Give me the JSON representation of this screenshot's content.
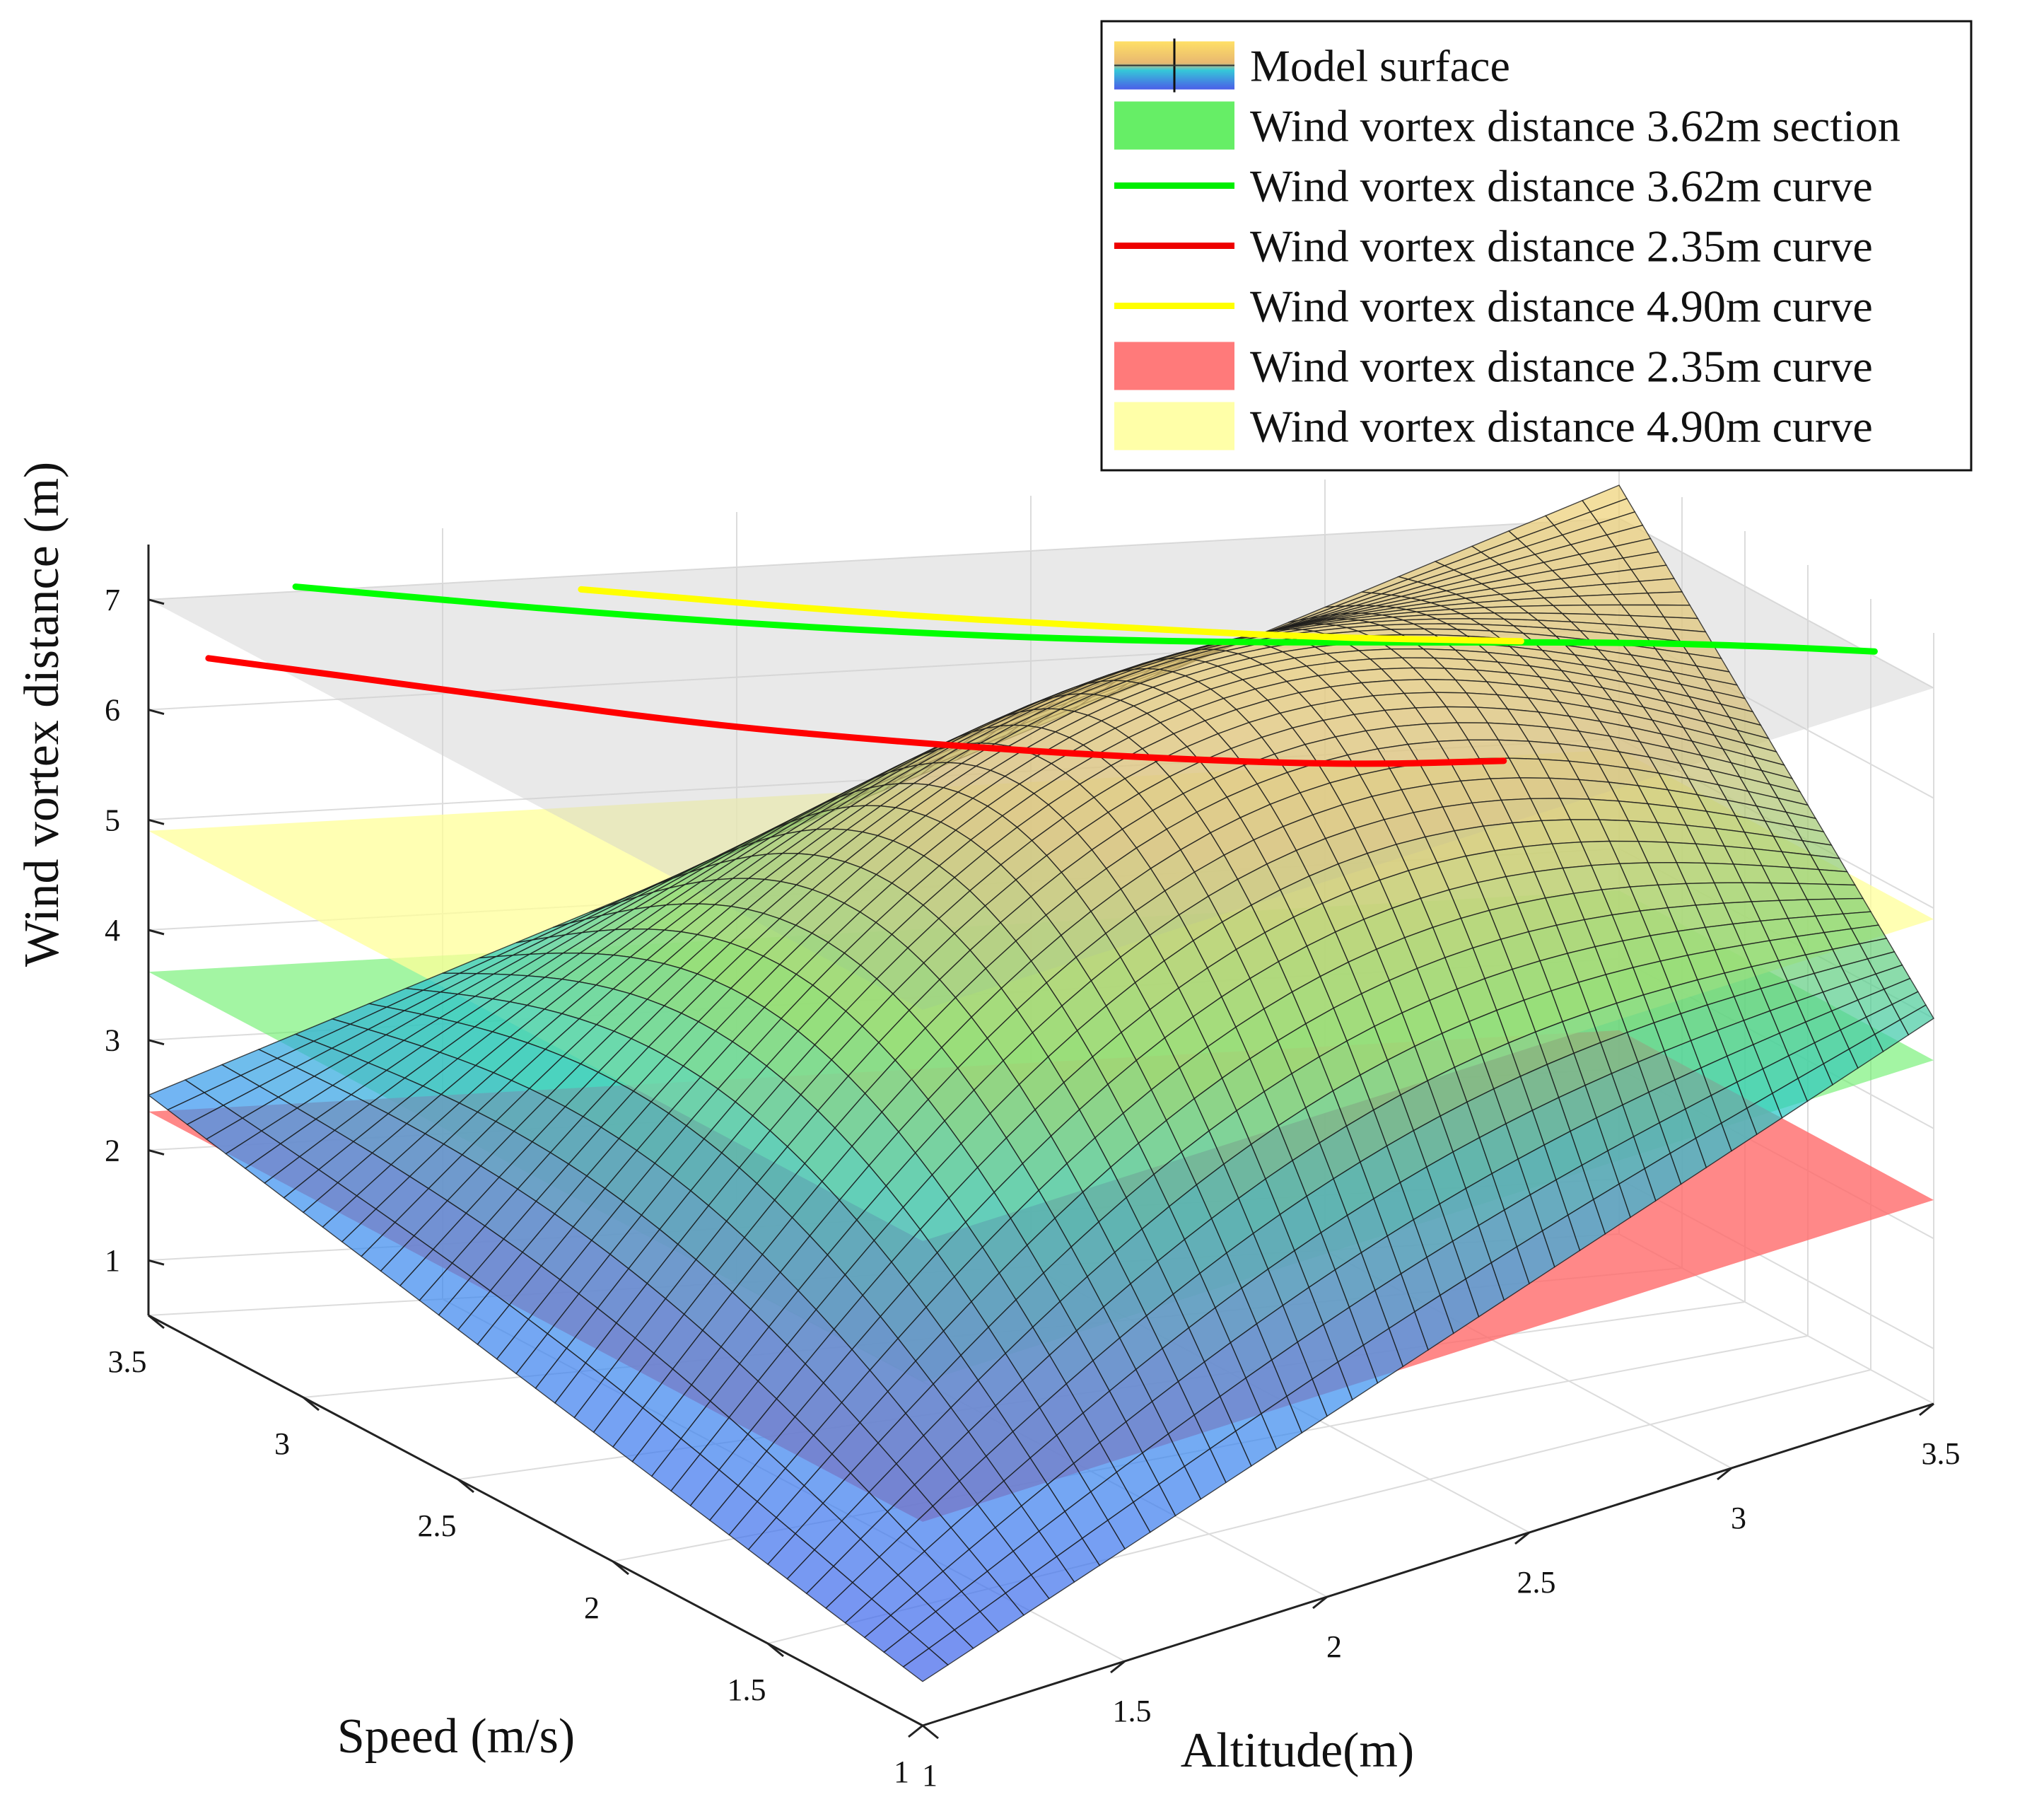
{
  "chart_data": {
    "type": "surface3d",
    "title": "",
    "xlabel": "Speed (m/s)",
    "ylabel": "Altitude(m)",
    "zlabel": "Wind vortex distance (m)",
    "xlim": [
      1,
      3.5
    ],
    "ylim": [
      1,
      3.5
    ],
    "zlim": [
      0.5,
      7.5
    ],
    "x_ticks": [
      "1",
      "1.5",
      "2",
      "2.5",
      "3",
      "3.5"
    ],
    "y_ticks": [
      "1",
      "1.5",
      "2",
      "2.5",
      "3",
      "3.5"
    ],
    "z_ticks": [
      "1",
      "2",
      "3",
      "4",
      "5",
      "6",
      "7"
    ],
    "grid": true,
    "legend_position": "top-right",
    "surface": {
      "name": "Model surface",
      "corner_values": {
        "speed1_alt1": 0.9,
        "speed3.5_alt1": 2.5,
        "speed1_alt3.5": 4.0,
        "speed3.5_alt3.5": 7.3
      },
      "mesh": 40
    },
    "planes": [
      {
        "name": "Wind vortex distance 3.62m section",
        "z": 3.62,
        "color": "#66ee66",
        "opacity": 0.6
      },
      {
        "name": "Wind vortex distance 2.35m curve",
        "z": 2.35,
        "color": "#ff6a6a",
        "opacity": 0.8
      },
      {
        "name": "Wind vortex distance 4.90m curve",
        "z": 4.9,
        "color": "#ffff99",
        "opacity": 0.75
      },
      {
        "name": "",
        "z": 7.0,
        "color": "#cfcfcf",
        "opacity": 0.45
      }
    ],
    "curves": [
      {
        "name": "Wind vortex distance 3.62m curve",
        "color": "#00ff00",
        "z": 7.2,
        "points": [
          [
            3.4,
            1.2
          ],
          [
            3.1,
            1.6
          ],
          [
            2.8,
            2.0
          ],
          [
            2.5,
            2.4
          ],
          [
            2.2,
            2.8
          ],
          [
            1.9,
            3.1
          ],
          [
            1.6,
            3.3
          ],
          [
            1.3,
            3.45
          ]
        ]
      },
      {
        "name": "Wind vortex distance 2.35m curve",
        "color": "#ff0000",
        "z": 6.6,
        "points": [
          [
            3.4,
            1.05
          ],
          [
            3.1,
            1.35
          ],
          [
            2.8,
            1.6
          ],
          [
            2.5,
            1.9
          ],
          [
            2.2,
            2.2
          ],
          [
            1.9,
            2.5
          ],
          [
            1.7,
            2.75
          ]
        ]
      },
      {
        "name": "Wind vortex distance 4.90m curve",
        "color": "#ffff00",
        "z": 7.3,
        "points": [
          [
            3.2,
            1.6
          ],
          [
            2.9,
            1.95
          ],
          [
            2.6,
            2.3
          ],
          [
            2.3,
            2.6
          ],
          [
            2.0,
            2.9
          ]
        ]
      }
    ],
    "legend": [
      {
        "label": "Model surface",
        "kind": "surface"
      },
      {
        "label": "Wind vortex distance 3.62m section",
        "kind": "patch",
        "color": "#66ee66"
      },
      {
        "label": "Wind vortex distance 3.62m curve",
        "kind": "line",
        "color": "#00ee00"
      },
      {
        "label": "Wind vortex distance 2.35m curve",
        "kind": "line",
        "color": "#ee0000"
      },
      {
        "label": "Wind vortex distance 4.90m curve",
        "kind": "line",
        "color": "#ffff00"
      },
      {
        "label": "Wind vortex distance 2.35m curve",
        "kind": "patch",
        "color": "#ff7a7a"
      },
      {
        "label": "Wind vortex distance 4.90m curve",
        "kind": "patch",
        "color": "#ffffa8"
      }
    ]
  }
}
